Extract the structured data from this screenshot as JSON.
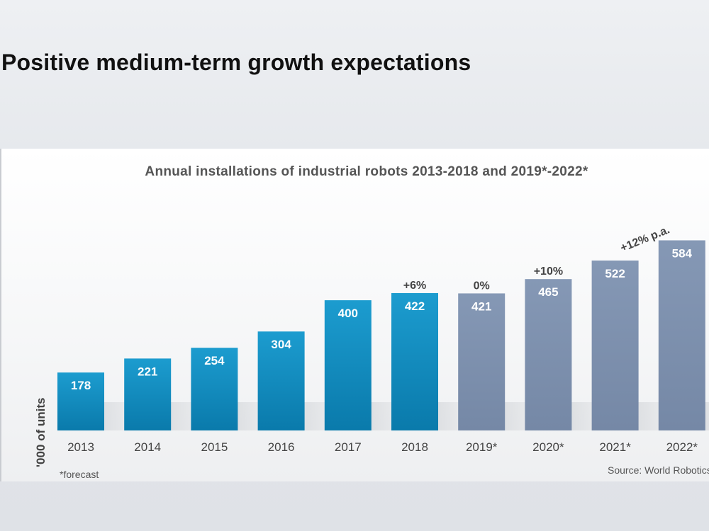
{
  "slide": {
    "title": "Positive medium-term growth expectations"
  },
  "chart_data": {
    "type": "bar",
    "title": "Annual installations of industrial robots 2013-2018 and 2019*-2022*",
    "ylabel": "'000 of units",
    "xlabel": "",
    "categories": [
      "2013",
      "2014",
      "2015",
      "2016",
      "2017",
      "2018",
      "2019*",
      "2020*",
      "2021*",
      "2022*"
    ],
    "values": [
      178,
      221,
      254,
      304,
      400,
      422,
      421,
      465,
      522,
      584
    ],
    "forecast": [
      false,
      false,
      false,
      false,
      false,
      false,
      true,
      true,
      true,
      true
    ],
    "ylim": [
      0,
      600
    ],
    "grid": false,
    "annotations": [
      {
        "category": "2018",
        "text": "+6%"
      },
      {
        "category": "2019*",
        "text": "0%"
      },
      {
        "category": "2020*",
        "text": "+10%"
      },
      {
        "category": "2021*",
        "text": "+12% p.a."
      }
    ],
    "colors": {
      "actual": "#1c9ccf",
      "actual_dark": "#0a7aab",
      "forecast": "#8598b5",
      "forecast_dark": "#7588a6"
    },
    "footnote": "*forecast",
    "source": "Source: World Robotics"
  }
}
